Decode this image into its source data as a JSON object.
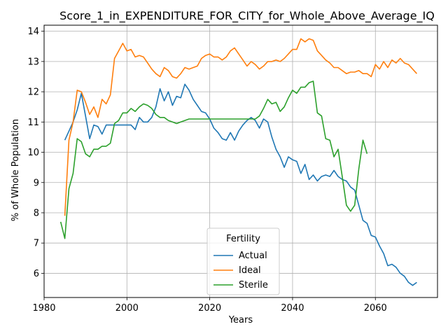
{
  "chart_data": {
    "type": "line",
    "title": "Score_1_in_EXPENDITURE_FOR_CITY_for_Whole_Above_Average_IQ",
    "xlabel": "Years",
    "ylabel": "% of Whole Population",
    "xlim": [
      1980,
      2075
    ],
    "ylim": [
      5.2,
      14.2
    ],
    "xticks": [
      1980,
      2000,
      2020,
      2040,
      2060
    ],
    "yticks": [
      6,
      7,
      8,
      9,
      10,
      11,
      12,
      13,
      14
    ],
    "grid": true,
    "legend": {
      "title": "Fertility",
      "placement": "lower-center"
    },
    "series": [
      {
        "name": "Actual",
        "color": "#1f77b4",
        "points": [
          [
            1985,
            10.4
          ],
          [
            1986,
            10.7
          ],
          [
            1987,
            11.0
          ],
          [
            1988,
            11.4
          ],
          [
            1989,
            11.95
          ],
          [
            1990,
            11.2
          ],
          [
            1991,
            10.45
          ],
          [
            1992,
            10.9
          ],
          [
            1993,
            10.85
          ],
          [
            1994,
            10.6
          ],
          [
            1995,
            10.9
          ],
          [
            1996,
            10.9
          ],
          [
            1997,
            10.9
          ],
          [
            1998,
            10.9
          ],
          [
            1999,
            10.9
          ],
          [
            2000,
            10.9
          ],
          [
            2001,
            10.9
          ],
          [
            2002,
            10.75
          ],
          [
            2003,
            11.15
          ],
          [
            2004,
            11.0
          ],
          [
            2005,
            11.0
          ],
          [
            2006,
            11.15
          ],
          [
            2007,
            11.5
          ],
          [
            2008,
            12.1
          ],
          [
            2009,
            11.7
          ],
          [
            2010,
            12.0
          ],
          [
            2011,
            11.55
          ],
          [
            2012,
            11.85
          ],
          [
            2013,
            11.8
          ],
          [
            2014,
            12.25
          ],
          [
            2015,
            12.05
          ],
          [
            2016,
            11.75
          ],
          [
            2017,
            11.55
          ],
          [
            2018,
            11.35
          ],
          [
            2019,
            11.3
          ],
          [
            2020,
            11.1
          ],
          [
            2021,
            10.8
          ],
          [
            2022,
            10.65
          ],
          [
            2023,
            10.45
          ],
          [
            2024,
            10.4
          ],
          [
            2025,
            10.65
          ],
          [
            2026,
            10.4
          ],
          [
            2027,
            10.7
          ],
          [
            2028,
            10.9
          ],
          [
            2029,
            11.05
          ],
          [
            2030,
            11.15
          ],
          [
            2031,
            11.05
          ],
          [
            2032,
            10.8
          ],
          [
            2033,
            11.1
          ],
          [
            2034,
            11.0
          ],
          [
            2035,
            10.5
          ],
          [
            2036,
            10.1
          ],
          [
            2037,
            9.85
          ],
          [
            2038,
            9.5
          ],
          [
            2039,
            9.85
          ],
          [
            2040,
            9.75
          ],
          [
            2041,
            9.7
          ],
          [
            2042,
            9.3
          ],
          [
            2043,
            9.6
          ],
          [
            2044,
            9.1
          ],
          [
            2045,
            9.25
          ],
          [
            2046,
            9.05
          ],
          [
            2047,
            9.2
          ],
          [
            2048,
            9.25
          ],
          [
            2049,
            9.2
          ],
          [
            2050,
            9.4
          ],
          [
            2051,
            9.2
          ],
          [
            2052,
            9.1
          ],
          [
            2053,
            9.05
          ],
          [
            2054,
            8.85
          ],
          [
            2055,
            8.75
          ],
          [
            2056,
            8.25
          ],
          [
            2057,
            7.75
          ],
          [
            2058,
            7.65
          ],
          [
            2059,
            7.25
          ],
          [
            2060,
            7.2
          ],
          [
            2061,
            6.9
          ],
          [
            2062,
            6.65
          ],
          [
            2063,
            6.25
          ],
          [
            2064,
            6.3
          ],
          [
            2065,
            6.2
          ],
          [
            2066,
            6.0
          ],
          [
            2067,
            5.9
          ],
          [
            2068,
            5.7
          ],
          [
            2069,
            5.6
          ],
          [
            2070,
            5.7
          ]
        ]
      },
      {
        "name": "Ideal",
        "color": "#ff7f0e",
        "points": [
          [
            1985,
            7.9
          ],
          [
            1986,
            10.4
          ],
          [
            1987,
            11.0
          ],
          [
            1988,
            12.05
          ],
          [
            1989,
            12.0
          ],
          [
            1990,
            11.65
          ],
          [
            1991,
            11.25
          ],
          [
            1992,
            11.5
          ],
          [
            1993,
            11.15
          ],
          [
            1994,
            11.75
          ],
          [
            1995,
            11.6
          ],
          [
            1996,
            11.9
          ],
          [
            1997,
            13.1
          ],
          [
            1998,
            13.35
          ],
          [
            1999,
            13.6
          ],
          [
            2000,
            13.35
          ],
          [
            2001,
            13.4
          ],
          [
            2002,
            13.15
          ],
          [
            2003,
            13.2
          ],
          [
            2004,
            13.15
          ],
          [
            2005,
            12.95
          ],
          [
            2006,
            12.75
          ],
          [
            2007,
            12.6
          ],
          [
            2008,
            12.5
          ],
          [
            2009,
            12.8
          ],
          [
            2010,
            12.7
          ],
          [
            2011,
            12.5
          ],
          [
            2012,
            12.45
          ],
          [
            2013,
            12.6
          ],
          [
            2014,
            12.8
          ],
          [
            2015,
            12.75
          ],
          [
            2016,
            12.8
          ],
          [
            2017,
            12.85
          ],
          [
            2018,
            13.1
          ],
          [
            2019,
            13.2
          ],
          [
            2020,
            13.25
          ],
          [
            2021,
            13.15
          ],
          [
            2022,
            13.15
          ],
          [
            2023,
            13.05
          ],
          [
            2024,
            13.15
          ],
          [
            2025,
            13.35
          ],
          [
            2026,
            13.45
          ],
          [
            2027,
            13.25
          ],
          [
            2028,
            13.05
          ],
          [
            2029,
            12.85
          ],
          [
            2030,
            13.0
          ],
          [
            2031,
            12.9
          ],
          [
            2032,
            12.75
          ],
          [
            2033,
            12.85
          ],
          [
            2034,
            13.0
          ],
          [
            2035,
            13.0
          ],
          [
            2036,
            13.05
          ],
          [
            2037,
            13.0
          ],
          [
            2038,
            13.1
          ],
          [
            2039,
            13.25
          ],
          [
            2040,
            13.4
          ],
          [
            2041,
            13.4
          ],
          [
            2042,
            13.75
          ],
          [
            2043,
            13.65
          ],
          [
            2044,
            13.75
          ],
          [
            2045,
            13.7
          ],
          [
            2046,
            13.35
          ],
          [
            2047,
            13.2
          ],
          [
            2048,
            13.05
          ],
          [
            2049,
            12.95
          ],
          [
            2050,
            12.8
          ],
          [
            2051,
            12.8
          ],
          [
            2052,
            12.7
          ],
          [
            2053,
            12.6
          ],
          [
            2054,
            12.65
          ],
          [
            2055,
            12.65
          ],
          [
            2056,
            12.7
          ],
          [
            2057,
            12.6
          ],
          [
            2058,
            12.6
          ],
          [
            2059,
            12.5
          ],
          [
            2060,
            12.9
          ],
          [
            2061,
            12.75
          ],
          [
            2062,
            13.0
          ],
          [
            2063,
            12.8
          ],
          [
            2064,
            13.05
          ],
          [
            2065,
            12.95
          ],
          [
            2066,
            13.1
          ],
          [
            2067,
            12.95
          ],
          [
            2068,
            12.9
          ],
          [
            2069,
            12.75
          ],
          [
            2070,
            12.6
          ]
        ]
      },
      {
        "name": "Sterile",
        "color": "#2ca02c",
        "points": [
          [
            1984,
            7.7
          ],
          [
            1985,
            7.15
          ],
          [
            1986,
            8.8
          ],
          [
            1987,
            9.3
          ],
          [
            1988,
            10.45
          ],
          [
            1989,
            10.35
          ],
          [
            1990,
            9.95
          ],
          [
            1991,
            9.85
          ],
          [
            1992,
            10.1
          ],
          [
            1993,
            10.1
          ],
          [
            1994,
            10.2
          ],
          [
            1995,
            10.2
          ],
          [
            1996,
            10.3
          ],
          [
            1997,
            10.95
          ],
          [
            1998,
            11.05
          ],
          [
            1999,
            11.3
          ],
          [
            2000,
            11.3
          ],
          [
            2001,
            11.45
          ],
          [
            2002,
            11.35
          ],
          [
            2003,
            11.5
          ],
          [
            2004,
            11.6
          ],
          [
            2005,
            11.55
          ],
          [
            2006,
            11.45
          ],
          [
            2007,
            11.25
          ],
          [
            2008,
            11.15
          ],
          [
            2009,
            11.15
          ],
          [
            2010,
            11.05
          ],
          [
            2011,
            11.0
          ],
          [
            2012,
            10.95
          ],
          [
            2013,
            11.0
          ],
          [
            2014,
            11.05
          ],
          [
            2015,
            11.1
          ],
          [
            2016,
            11.1
          ],
          [
            2017,
            11.1
          ],
          [
            2018,
            11.1
          ],
          [
            2019,
            11.1
          ],
          [
            2020,
            11.1
          ],
          [
            2021,
            11.1
          ],
          [
            2022,
            11.1
          ],
          [
            2023,
            11.1
          ],
          [
            2024,
            11.1
          ],
          [
            2025,
            11.1
          ],
          [
            2026,
            11.1
          ],
          [
            2027,
            11.1
          ],
          [
            2028,
            11.1
          ],
          [
            2029,
            11.1
          ],
          [
            2030,
            11.1
          ],
          [
            2031,
            11.1
          ],
          [
            2032,
            11.2
          ],
          [
            2033,
            11.45
          ],
          [
            2034,
            11.75
          ],
          [
            2035,
            11.6
          ],
          [
            2036,
            11.65
          ],
          [
            2037,
            11.35
          ],
          [
            2038,
            11.5
          ],
          [
            2039,
            11.8
          ],
          [
            2040,
            12.05
          ],
          [
            2041,
            11.95
          ],
          [
            2042,
            12.15
          ],
          [
            2043,
            12.15
          ],
          [
            2044,
            12.3
          ],
          [
            2045,
            12.35
          ],
          [
            2046,
            11.3
          ],
          [
            2047,
            11.2
          ],
          [
            2048,
            10.45
          ],
          [
            2049,
            10.4
          ],
          [
            2050,
            9.85
          ],
          [
            2051,
            10.1
          ],
          [
            2052,
            9.2
          ],
          [
            2053,
            8.25
          ],
          [
            2054,
            8.05
          ],
          [
            2055,
            8.25
          ],
          [
            2056,
            9.45
          ],
          [
            2057,
            10.4
          ],
          [
            2058,
            9.95
          ]
        ]
      }
    ]
  }
}
